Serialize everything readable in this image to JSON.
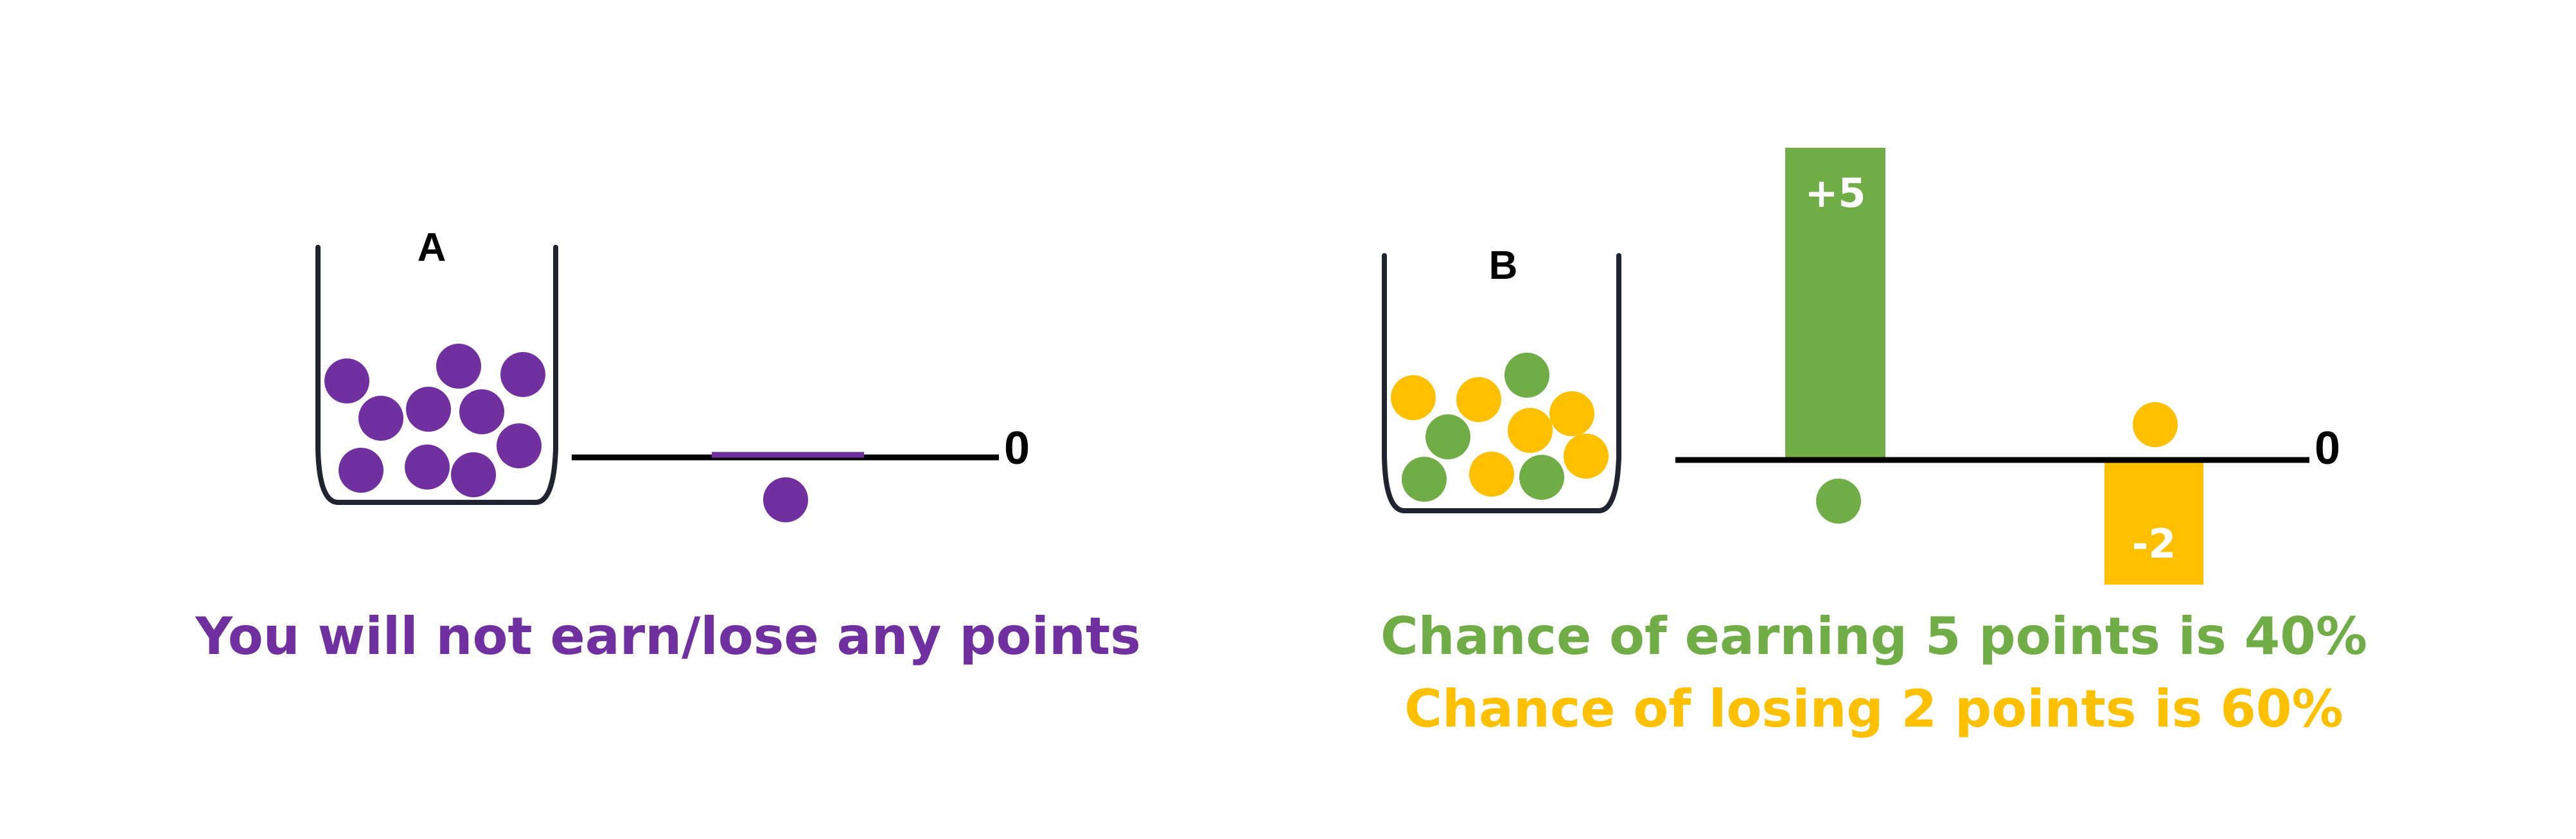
{
  "option_a": {
    "label": "A",
    "zero_label": "0",
    "caption": "You will not earn/lose any points",
    "ball_color": "#7030A0",
    "ball_count": 10
  },
  "option_b": {
    "label": "B",
    "zero_label": "0",
    "gain_label": "+5",
    "loss_label": "-2",
    "caption_gain": "Chance of earning 5 points is 40%",
    "caption_loss": "Chance of losing 2 points is 60%",
    "gain_color": "#70AD47",
    "loss_color": "#FFC000",
    "green_ball_count": 4,
    "yellow_ball_count": 6
  }
}
